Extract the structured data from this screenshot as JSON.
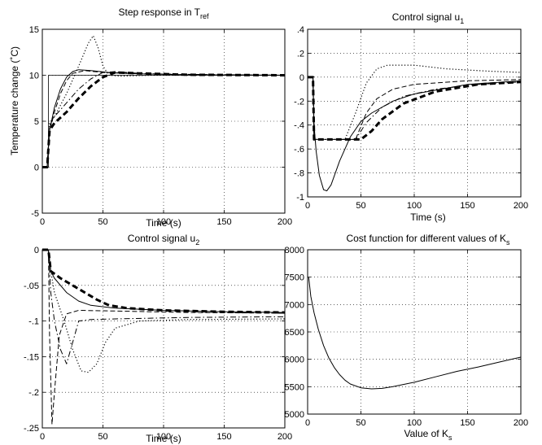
{
  "chart_data": [
    {
      "type": "line",
      "title": "Step response in T",
      "title_sub": "ref",
      "xlabel": "Time (s)",
      "ylabel": "Temperature change (˚C)",
      "xlim": [
        0,
        200
      ],
      "ylim": [
        -5,
        15
      ],
      "xticks": [
        0,
        50,
        100,
        150,
        200
      ],
      "yticks": [
        -5,
        0,
        5,
        10,
        15
      ],
      "grid": true,
      "series": [
        {
          "style": "thin-solid",
          "color": "#000000",
          "points": [
            [
              0,
              0
            ],
            [
              5,
              0
            ],
            [
              5,
              10
            ],
            [
              200,
              10
            ]
          ]
        },
        {
          "style": "solid",
          "color": "#000000",
          "points": [
            [
              0,
              0
            ],
            [
              4,
              0
            ],
            [
              6,
              4
            ],
            [
              10,
              6.5
            ],
            [
              15,
              8.5
            ],
            [
              20,
              9.8
            ],
            [
              25,
              10.4
            ],
            [
              30,
              10.6
            ],
            [
              40,
              10.5
            ],
            [
              55,
              10.3
            ],
            [
              80,
              10.15
            ],
            [
              120,
              10.05
            ],
            [
              200,
              10
            ]
          ]
        },
        {
          "style": "dashed",
          "color": "#000000",
          "points": [
            [
              0,
              0
            ],
            [
              4,
              0
            ],
            [
              6,
              4
            ],
            [
              10,
              6
            ],
            [
              15,
              8
            ],
            [
              20,
              9.4
            ],
            [
              25,
              10.2
            ],
            [
              35,
              10.5
            ],
            [
              50,
              10.3
            ],
            [
              80,
              10.15
            ],
            [
              200,
              10
            ]
          ]
        },
        {
          "style": "dashdot",
          "color": "#000000",
          "points": [
            [
              0,
              0
            ],
            [
              4,
              0
            ],
            [
              6,
              4.5
            ],
            [
              10,
              5.5
            ],
            [
              20,
              7
            ],
            [
              30,
              8.5
            ],
            [
              40,
              9.6
            ],
            [
              50,
              10.3
            ],
            [
              60,
              10.4
            ],
            [
              80,
              10.2
            ],
            [
              120,
              10.05
            ],
            [
              200,
              10
            ]
          ]
        },
        {
          "style": "dotted",
          "color": "#000000",
          "points": [
            [
              0,
              0
            ],
            [
              4,
              0
            ],
            [
              6,
              4.8
            ],
            [
              10,
              5.5
            ],
            [
              20,
              8
            ],
            [
              30,
              11
            ],
            [
              38,
              13.5
            ],
            [
              42,
              14.3
            ],
            [
              46,
              13
            ],
            [
              50,
              11
            ],
            [
              55,
              10
            ],
            [
              65,
              9.9
            ],
            [
              90,
              10
            ],
            [
              200,
              10
            ]
          ]
        },
        {
          "style": "thick-dashed",
          "color": "#000000",
          "points": [
            [
              0,
              0
            ],
            [
              4,
              0
            ],
            [
              6,
              4
            ],
            [
              10,
              4.8
            ],
            [
              20,
              6
            ],
            [
              30,
              7.5
            ],
            [
              40,
              8.8
            ],
            [
              50,
              9.8
            ],
            [
              60,
              10.3
            ],
            [
              80,
              10.2
            ],
            [
              120,
              10.05
            ],
            [
              200,
              10
            ]
          ]
        }
      ]
    },
    {
      "type": "line",
      "title": "Control signal u",
      "title_sub": "1",
      "xlabel": "Time (s)",
      "ylabel": "",
      "xlim": [
        0,
        200
      ],
      "ylim": [
        -1,
        0.4
      ],
      "xticks": [
        0,
        50,
        100,
        150,
        200
      ],
      "yticks": [
        -1,
        -0.8,
        -0.6,
        -0.4,
        -0.2,
        0,
        0.2,
        0.4
      ],
      "grid": true,
      "series": [
        {
          "style": "solid",
          "color": "#000000",
          "points": [
            [
              0,
              0
            ],
            [
              5,
              0
            ],
            [
              6,
              -0.4
            ],
            [
              8,
              -0.62
            ],
            [
              11,
              -0.82
            ],
            [
              15,
              -0.94
            ],
            [
              18,
              -0.95
            ],
            [
              22,
              -0.9
            ],
            [
              30,
              -0.7
            ],
            [
              40,
              -0.5
            ],
            [
              50,
              -0.37
            ],
            [
              60,
              -0.3
            ],
            [
              80,
              -0.2
            ],
            [
              100,
              -0.14
            ],
            [
              150,
              -0.06
            ],
            [
              200,
              -0.03
            ]
          ]
        },
        {
          "style": "dashed",
          "color": "#000000",
          "points": [
            [
              0,
              0
            ],
            [
              5,
              0
            ],
            [
              6,
              -0.52
            ],
            [
              45,
              -0.52
            ],
            [
              55,
              -0.3
            ],
            [
              65,
              -0.18
            ],
            [
              80,
              -0.1
            ],
            [
              100,
              -0.06
            ],
            [
              150,
              -0.03
            ],
            [
              200,
              -0.02
            ]
          ]
        },
        {
          "style": "dashdot",
          "color": "#000000",
          "points": [
            [
              0,
              0
            ],
            [
              5,
              0
            ],
            [
              6,
              -0.52
            ],
            [
              45,
              -0.52
            ],
            [
              55,
              -0.38
            ],
            [
              70,
              -0.25
            ],
            [
              90,
              -0.16
            ],
            [
              120,
              -0.1
            ],
            [
              160,
              -0.06
            ],
            [
              200,
              -0.04
            ]
          ]
        },
        {
          "style": "dotted",
          "color": "#000000",
          "points": [
            [
              0,
              0
            ],
            [
              5,
              0
            ],
            [
              6,
              -0.52
            ],
            [
              35,
              -0.52
            ],
            [
              45,
              -0.3
            ],
            [
              55,
              -0.05
            ],
            [
              65,
              0.07
            ],
            [
              75,
              0.1
            ],
            [
              100,
              0.1
            ],
            [
              130,
              0.07
            ],
            [
              170,
              0.05
            ],
            [
              200,
              0.04
            ]
          ]
        },
        {
          "style": "thick-dashed",
          "color": "#000000",
          "points": [
            [
              0,
              0
            ],
            [
              5,
              0
            ],
            [
              6,
              -0.52
            ],
            [
              50,
              -0.52
            ],
            [
              60,
              -0.45
            ],
            [
              70,
              -0.35
            ],
            [
              90,
              -0.22
            ],
            [
              120,
              -0.12
            ],
            [
              160,
              -0.06
            ],
            [
              200,
              -0.04
            ]
          ]
        }
      ]
    },
    {
      "type": "line",
      "title": "Control signal u",
      "title_sub": "2",
      "xlabel": "Time (s)",
      "ylabel": "",
      "xlim": [
        0,
        200
      ],
      "ylim": [
        -0.25,
        0
      ],
      "xticks": [
        0,
        50,
        100,
        150,
        200
      ],
      "yticks": [
        -0.25,
        -0.2,
        -0.15,
        -0.1,
        -0.05,
        0
      ],
      "grid": true,
      "series": [
        {
          "style": "solid",
          "color": "#000000",
          "points": [
            [
              0,
              0
            ],
            [
              5,
              0
            ],
            [
              7,
              -0.03
            ],
            [
              10,
              -0.04
            ],
            [
              20,
              -0.06
            ],
            [
              30,
              -0.072
            ],
            [
              40,
              -0.078
            ],
            [
              60,
              -0.082
            ],
            [
              100,
              -0.085
            ],
            [
              150,
              -0.087
            ],
            [
              200,
              -0.088
            ]
          ]
        },
        {
          "style": "dashed",
          "color": "#000000",
          "points": [
            [
              0,
              0
            ],
            [
              5,
              0
            ],
            [
              6,
              -0.12
            ],
            [
              8,
              -0.245
            ],
            [
              10,
              -0.2
            ],
            [
              14,
              -0.12
            ],
            [
              20,
              -0.09
            ],
            [
              30,
              -0.085
            ],
            [
              60,
              -0.086
            ],
            [
              120,
              -0.088
            ],
            [
              200,
              -0.089
            ]
          ]
        },
        {
          "style": "dashdot",
          "color": "#000000",
          "points": [
            [
              0,
              0
            ],
            [
              5,
              0
            ],
            [
              7,
              -0.06
            ],
            [
              10,
              -0.1
            ],
            [
              15,
              -0.14
            ],
            [
              20,
              -0.16
            ],
            [
              25,
              -0.13
            ],
            [
              30,
              -0.1
            ],
            [
              40,
              -0.098
            ],
            [
              60,
              -0.097
            ],
            [
              120,
              -0.095
            ],
            [
              200,
              -0.094
            ]
          ]
        },
        {
          "style": "dotted",
          "color": "#000000",
          "points": [
            [
              0,
              0
            ],
            [
              5,
              0
            ],
            [
              7,
              -0.03
            ],
            [
              10,
              -0.06
            ],
            [
              18,
              -0.1
            ],
            [
              25,
              -0.14
            ],
            [
              32,
              -0.17
            ],
            [
              38,
              -0.172
            ],
            [
              45,
              -0.16
            ],
            [
              52,
              -0.13
            ],
            [
              60,
              -0.11
            ],
            [
              80,
              -0.1
            ],
            [
              120,
              -0.098
            ],
            [
              200,
              -0.097
            ]
          ]
        },
        {
          "style": "thick-dashed",
          "color": "#000000",
          "points": [
            [
              0,
              0
            ],
            [
              5,
              0
            ],
            [
              7,
              -0.03
            ],
            [
              15,
              -0.04
            ],
            [
              25,
              -0.05
            ],
            [
              35,
              -0.06
            ],
            [
              45,
              -0.07
            ],
            [
              55,
              -0.078
            ],
            [
              70,
              -0.082
            ],
            [
              100,
              -0.085
            ],
            [
              150,
              -0.087
            ],
            [
              200,
              -0.088
            ]
          ]
        }
      ]
    },
    {
      "type": "line",
      "title": "Cost function for different values of K",
      "title_sub": "s",
      "xlabel": "Value of K",
      "xlabel_sub": "s",
      "ylabel": "",
      "xlim": [
        0,
        200
      ],
      "ylim": [
        5000,
        8000
      ],
      "xticks": [
        0,
        50,
        100,
        150,
        200
      ],
      "yticks": [
        5000,
        5500,
        6000,
        6500,
        7000,
        7500,
        8000
      ],
      "grid": true,
      "series": [
        {
          "style": "solid",
          "color": "#000000",
          "points": [
            [
              1,
              7500
            ],
            [
              3,
              7150
            ],
            [
              6,
              6850
            ],
            [
              10,
              6550
            ],
            [
              15,
              6250
            ],
            [
              20,
              6020
            ],
            [
              25,
              5850
            ],
            [
              30,
              5720
            ],
            [
              35,
              5620
            ],
            [
              40,
              5550
            ],
            [
              50,
              5480
            ],
            [
              60,
              5460
            ],
            [
              70,
              5470
            ],
            [
              80,
              5500
            ],
            [
              100,
              5580
            ],
            [
              120,
              5680
            ],
            [
              140,
              5780
            ],
            [
              160,
              5860
            ],
            [
              180,
              5950
            ],
            [
              200,
              6040
            ]
          ]
        }
      ]
    }
  ]
}
